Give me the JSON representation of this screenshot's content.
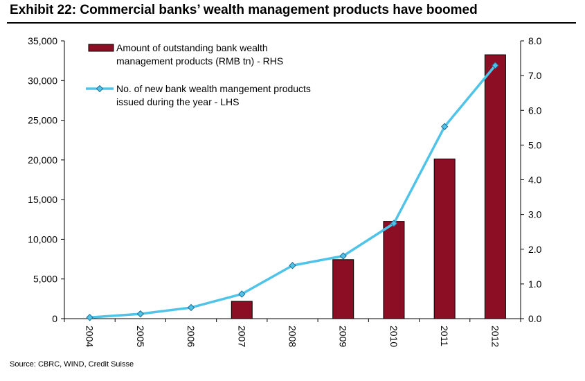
{
  "title": "Exhibit 22: Commercial banks’ wealth management products have boomed",
  "source": "Source: CBRC, WIND, Credit Suisse",
  "chart_data": {
    "type": "bar",
    "categories": [
      "2004",
      "2005",
      "2006",
      "2007",
      "2008",
      "2009",
      "2010",
      "2011",
      "2012"
    ],
    "series": [
      {
        "name": "Amount of outstanding bank wealth management products (RMB tn) - RHS",
        "type": "bar",
        "axis": "right",
        "color": "#8b0e24",
        "values": [
          null,
          null,
          null,
          0.5,
          null,
          1.7,
          2.8,
          4.6,
          7.6
        ]
      },
      {
        "name": "No. of new bank wealth mangement products issued during the year - LHS",
        "type": "line",
        "axis": "left",
        "color": "#4fc3e8",
        "values": [
          150,
          600,
          1400,
          3100,
          6700,
          7900,
          12000,
          24200,
          31900
        ]
      }
    ],
    "legend": [
      {
        "line1": "Amount of outstanding bank wealth",
        "line2": "management products (RMB tn) - RHS"
      },
      {
        "line1": "No. of new bank wealth mangement products",
        "line2": "issued during the year - LHS"
      }
    ],
    "y_left": {
      "min": 0,
      "max": 35000,
      "ticks": [
        "0",
        "5,000",
        "10,000",
        "15,000",
        "20,000",
        "25,000",
        "30,000",
        "35,000"
      ]
    },
    "y_right": {
      "min": 0,
      "max": 8,
      "ticks": [
        "0.0",
        "1.0",
        "2.0",
        "3.0",
        "4.0",
        "5.0",
        "6.0",
        "7.0",
        "8.0"
      ]
    },
    "legend_position": "top-left",
    "grid": false
  }
}
